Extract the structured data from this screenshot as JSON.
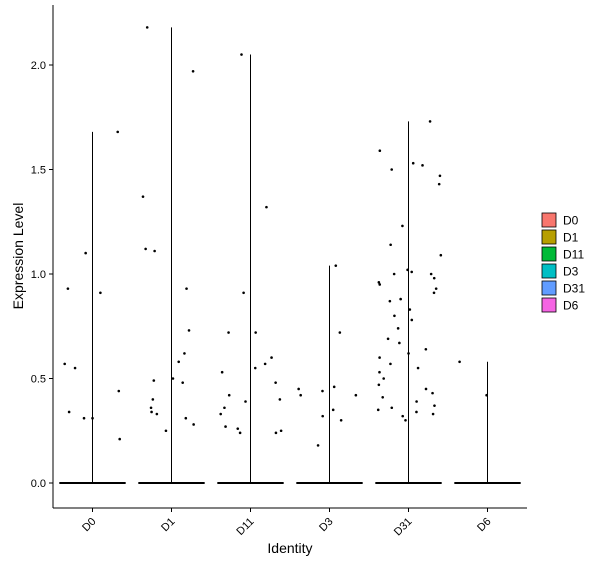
{
  "chart_data": {
    "type": "violin",
    "title": "",
    "xlabel": "Identity",
    "ylabel": "Expression Level",
    "ylim": [
      -0.12,
      2.3
    ],
    "yticks": [
      0.0,
      0.5,
      1.0,
      1.5,
      2.0
    ],
    "ytick_labels": [
      "0.0",
      "0.5",
      "1.0",
      "1.5",
      "2.0"
    ],
    "categories": [
      "D0",
      "D1",
      "D11",
      "D3",
      "D31",
      "D6"
    ],
    "legend": {
      "entries": [
        "D0",
        "D1",
        "D11",
        "D3",
        "D31",
        "D6"
      ],
      "colors": [
        "#F8766D",
        "#B79F00",
        "#00BA38",
        "#00BFC4",
        "#619CFF",
        "#F564E3"
      ],
      "position": "right"
    },
    "grid": false,
    "series": [
      {
        "name": "D0",
        "max": 1.68,
        "points": [
          1.68,
          0.21,
          0.57,
          1.1,
          0.44,
          0.34,
          0.31,
          0.31,
          0.91,
          0.55,
          0.93
        ]
      },
      {
        "name": "D1",
        "max": 2.18,
        "points": [
          2.18,
          1.97,
          0.93,
          1.37,
          1.11,
          1.12,
          0.73,
          0.49,
          0.5,
          0.48,
          0.4,
          0.25,
          0.36,
          0.58,
          0.34,
          0.31,
          0.28,
          0.33,
          0.62
        ]
      },
      {
        "name": "D11",
        "max": 2.05,
        "points": [
          2.05,
          1.32,
          0.91,
          0.57,
          0.55,
          0.53,
          0.42,
          0.4,
          0.39,
          0.27,
          0.26,
          0.24,
          0.25,
          0.33,
          0.48,
          0.72,
          0.72,
          0.6,
          0.36,
          0.24
        ]
      },
      {
        "name": "D3",
        "max": 1.04,
        "points": [
          1.04,
          0.72,
          0.42,
          0.44,
          0.42,
          0.45,
          0.46,
          0.3,
          0.18,
          0.35,
          0.32
        ]
      },
      {
        "name": "D31",
        "max": 1.73,
        "points": [
          1.73,
          1.53,
          1.52,
          1.59,
          1.5,
          1.47,
          1.43,
          1.23,
          1.14,
          1.09,
          1.02,
          1.0,
          1.01,
          0.98,
          1.0,
          0.96,
          0.95,
          0.93,
          0.91,
          0.88,
          0.87,
          0.83,
          0.8,
          0.78,
          0.74,
          0.69,
          0.67,
          0.64,
          0.62,
          0.6,
          0.57,
          0.55,
          0.53,
          0.5,
          0.47,
          0.45,
          0.43,
          0.41,
          0.39,
          0.37,
          0.36,
          0.35,
          0.34,
          0.33,
          0.32,
          0.3
        ]
      },
      {
        "name": "D6",
        "max": 0.58,
        "points": [
          0.58,
          0.42
        ]
      }
    ]
  }
}
